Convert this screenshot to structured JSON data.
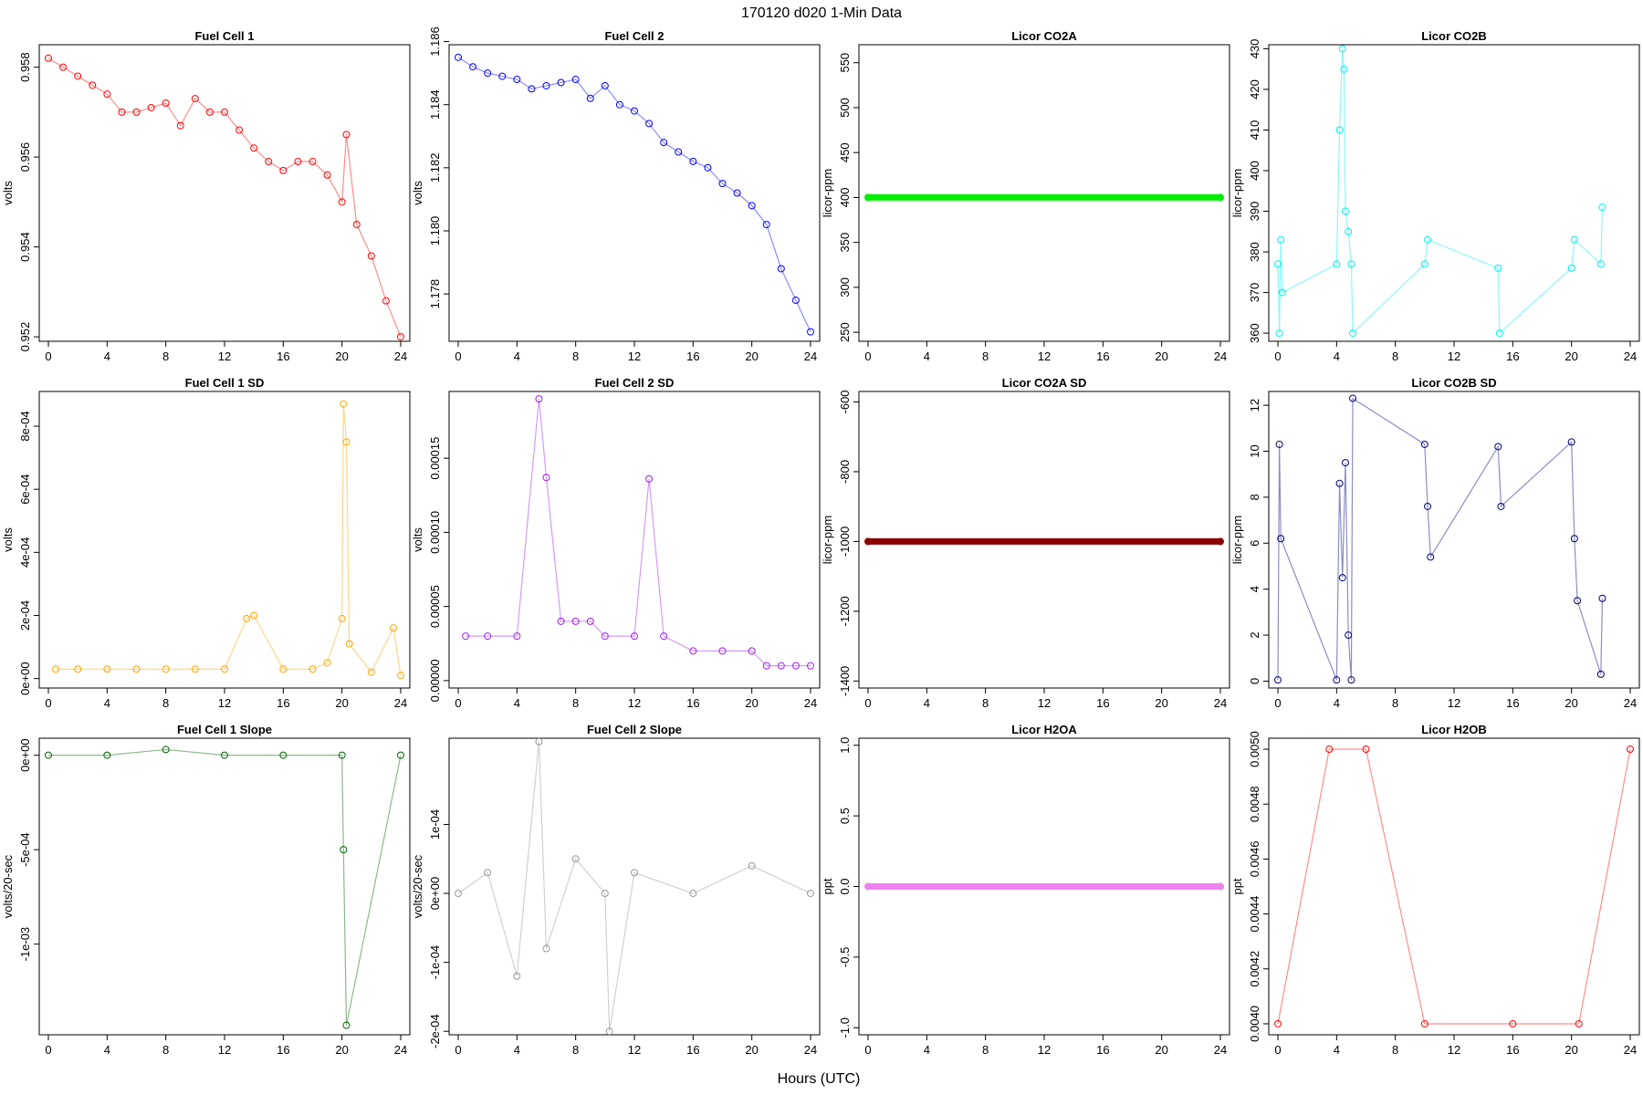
{
  "figure": {
    "suptitle": "170120    d020    1-Min Data",
    "xlabel": "Hours (UTC)"
  },
  "chart_data": [
    {
      "id": "fc1",
      "type": "scatter",
      "title": "Fuel Cell 1",
      "ylabel": "volts",
      "color": "#ff0000",
      "xlim": [
        0,
        24
      ],
      "ylim": [
        0.9519,
        0.9585
      ],
      "yticks": [
        0.952,
        0.954,
        0.956,
        0.958
      ],
      "ytick_labels": [
        "0.952",
        "0.954",
        "0.956",
        "0.958"
      ],
      "x": [
        0,
        1,
        2,
        3,
        4,
        5,
        6,
        7,
        8,
        9,
        10,
        11,
        12,
        13,
        14,
        15,
        16,
        17,
        18,
        19,
        20,
        20.3,
        21,
        22,
        23,
        24
      ],
      "y": [
        0.9582,
        0.958,
        0.9578,
        0.9576,
        0.9574,
        0.957,
        0.957,
        0.9571,
        0.9572,
        0.9567,
        0.9573,
        0.957,
        0.957,
        0.9566,
        0.9562,
        0.9559,
        0.9557,
        0.9559,
        0.9559,
        0.9556,
        0.955,
        0.9565,
        0.9545,
        0.9538,
        0.9528,
        0.952
      ]
    },
    {
      "id": "fc2",
      "type": "scatter",
      "title": "Fuel Cell 2",
      "ylabel": "volts",
      "color": "#0000ff",
      "xlim": [
        0,
        24
      ],
      "ylim": [
        1.1765,
        1.1859
      ],
      "yticks": [
        1.178,
        1.18,
        1.182,
        1.184,
        1.186
      ],
      "ytick_labels": [
        "1.178",
        "1.180",
        "1.182",
        "1.184",
        "1.186"
      ],
      "x": [
        0,
        1,
        2,
        3,
        4,
        5,
        6,
        7,
        8,
        9,
        10,
        11,
        12,
        13,
        14,
        15,
        16,
        17,
        18,
        19,
        20,
        21,
        22,
        23,
        24
      ],
      "y": [
        1.1855,
        1.1852,
        1.185,
        1.1849,
        1.1848,
        1.1845,
        1.1846,
        1.1847,
        1.1848,
        1.1842,
        1.1846,
        1.184,
        1.1838,
        1.1834,
        1.1828,
        1.1825,
        1.1822,
        1.182,
        1.1815,
        1.1812,
        1.1808,
        1.1802,
        1.1788,
        1.1778,
        1.1768
      ]
    },
    {
      "id": "co2a",
      "type": "scatter",
      "title": "Licor CO2A",
      "ylabel": "licor-ppm",
      "color": "#00ee00",
      "xlim": [
        0,
        24
      ],
      "ylim": [
        240,
        570
      ],
      "yticks": [
        250,
        300,
        350,
        400,
        450,
        500,
        550
      ],
      "ytick_labels": [
        "250",
        "300",
        "350",
        "400",
        "450",
        "500",
        "550"
      ],
      "x": [
        0,
        24
      ],
      "y": [
        400,
        400
      ]
    },
    {
      "id": "co2b",
      "type": "scatter",
      "title": "Licor CO2B",
      "ylabel": "licor-ppm",
      "color": "#00eeee",
      "xlim": [
        0,
        24
      ],
      "ylim": [
        358,
        431
      ],
      "yticks": [
        360,
        370,
        380,
        390,
        400,
        410,
        420,
        430
      ],
      "ytick_labels": [
        "360",
        "370",
        "380",
        "390",
        "400",
        "410",
        "420",
        "430"
      ],
      "x": [
        0,
        0.1,
        0.2,
        0.3,
        4,
        4.2,
        4.4,
        4.5,
        4.6,
        4.8,
        5,
        5.1,
        10,
        10.2,
        15,
        15.1,
        20,
        20.2,
        22,
        22.1
      ],
      "y": [
        377,
        360,
        383,
        370,
        377,
        410,
        430,
        425,
        390,
        385,
        377,
        360,
        377,
        383,
        376,
        360,
        376,
        383,
        377,
        391
      ]
    },
    {
      "id": "fc1sd",
      "type": "scatter",
      "title": "Fuel Cell 1 SD",
      "ylabel": "volts",
      "color": "#ffa500",
      "xlim": [
        0,
        24
      ],
      "ylim": [
        -3e-05,
        0.00091
      ],
      "yticks": [
        0,
        0.0002,
        0.0004,
        0.0006,
        0.0008
      ],
      "ytick_labels": [
        "0e+00",
        "2e-04",
        "4e-04",
        "6e-04",
        "8e-04"
      ],
      "x": [
        0.5,
        2,
        4,
        6,
        8,
        10,
        12,
        13.5,
        14,
        16,
        18,
        19,
        20,
        20.1,
        20.3,
        20.5,
        22,
        23.5,
        24
      ],
      "y": [
        3e-05,
        3e-05,
        3e-05,
        3e-05,
        3e-05,
        3e-05,
        3e-05,
        0.00019,
        0.0002,
        3e-05,
        3e-05,
        5e-05,
        0.00019,
        0.00087,
        0.00075,
        0.00011,
        2e-05,
        0.00016,
        1e-05
      ]
    },
    {
      "id": "fc2sd",
      "type": "scatter",
      "title": "Fuel Cell 2 SD",
      "ylabel": "volts",
      "color": "#a020f0",
      "xlim": [
        0,
        24
      ],
      "ylim": [
        -5e-06,
        0.000195
      ],
      "yticks": [
        0,
        5e-05,
        0.0001,
        0.00015
      ],
      "ytick_labels": [
        "0.00000",
        "0.00005",
        "0.00010",
        "0.00015"
      ],
      "x": [
        0.5,
        2,
        4,
        5.5,
        6,
        7,
        8,
        9,
        10,
        12,
        13,
        14,
        16,
        18,
        20,
        21,
        22,
        23,
        24
      ],
      "y": [
        3e-05,
        3e-05,
        3e-05,
        0.00019,
        0.000137,
        4e-05,
        4e-05,
        4e-05,
        3e-05,
        3e-05,
        0.000136,
        3e-05,
        2e-05,
        2e-05,
        2e-05,
        1e-05,
        1e-05,
        1e-05,
        1e-05
      ]
    },
    {
      "id": "co2asd",
      "type": "scatter",
      "title": "Licor CO2A SD",
      "ylabel": "licor-ppm",
      "color": "#8b0000",
      "xlim": [
        0,
        24
      ],
      "ylim": [
        -1420,
        -570
      ],
      "yticks": [
        -1400,
        -1200,
        -1000,
        -800,
        -600
      ],
      "ytick_labels": [
        "-1400",
        "-1200",
        "-1000",
        "-800",
        "-600"
      ],
      "x": [
        0,
        24
      ],
      "y": [
        -1000,
        -1000
      ]
    },
    {
      "id": "co2bsd",
      "type": "scatter",
      "title": "Licor CO2B SD",
      "ylabel": "licor-ppm",
      "color": "#000080",
      "xlim": [
        0,
        24
      ],
      "ylim": [
        -0.3,
        12.6
      ],
      "yticks": [
        0,
        2,
        4,
        6,
        8,
        10,
        12
      ],
      "ytick_labels": [
        "0",
        "2",
        "4",
        "6",
        "8",
        "10",
        "12"
      ],
      "x": [
        0,
        0.1,
        0.2,
        4,
        4.2,
        4.4,
        4.6,
        4.8,
        5,
        5.1,
        10,
        10.2,
        10.4,
        15,
        15.2,
        20,
        20.2,
        20.4,
        22,
        22.1
      ],
      "y": [
        0.05,
        10.3,
        6.2,
        0.05,
        8.6,
        4.5,
        9.5,
        2,
        0.05,
        12.3,
        10.3,
        7.6,
        5.4,
        10.2,
        7.6,
        10.4,
        6.2,
        3.5,
        0.3,
        3.6
      ]
    },
    {
      "id": "fc1slope",
      "type": "scatter",
      "title": "Fuel Cell 1 Slope",
      "ylabel": "volts/20-sec",
      "color": "#006400",
      "xlim": [
        0,
        24
      ],
      "ylim": [
        -0.00148,
        9e-05
      ],
      "yticks": [
        -0.001,
        -0.0005,
        0
      ],
      "ytick_labels": [
        "-1e-03",
        "-5e-04",
        "0e+00"
      ],
      "x": [
        0,
        4,
        8,
        12,
        16,
        20,
        20.1,
        20.3,
        24
      ],
      "y": [
        0,
        0,
        3e-05,
        0,
        0,
        0,
        -0.0005,
        -0.00143,
        0
      ]
    },
    {
      "id": "fc2slope",
      "type": "scatter",
      "title": "Fuel Cell 2 Slope",
      "ylabel": "volts/20-sec",
      "color": "#999999",
      "xlim": [
        0,
        24
      ],
      "ylim": [
        -0.000205,
        0.000225
      ],
      "yticks": [
        -0.0002,
        -0.0001,
        0,
        0.0001
      ],
      "ytick_labels": [
        "-2e-04",
        "-1e-04",
        "0e+00",
        "1e-04"
      ],
      "x": [
        0,
        2,
        4,
        5.5,
        6,
        8,
        10,
        10.3,
        12,
        16,
        20,
        24
      ],
      "y": [
        0,
        3e-05,
        -0.00012,
        0.00022,
        -8e-05,
        5e-05,
        0,
        -0.0002,
        3e-05,
        0,
        4e-05,
        0
      ]
    },
    {
      "id": "h2oa",
      "type": "scatter",
      "title": "Licor H2OA",
      "ylabel": "ppt",
      "color": "#ee82ee",
      "xlim": [
        0,
        24
      ],
      "ylim": [
        -1.05,
        1.05
      ],
      "yticks": [
        -1,
        -0.5,
        0,
        0.5,
        1
      ],
      "ytick_labels": [
        "-1.0",
        "-0.5",
        "0.0",
        "0.5",
        "1.0"
      ],
      "x": [
        0,
        24
      ],
      "y": [
        0,
        0
      ]
    },
    {
      "id": "h2ob",
      "type": "scatter",
      "title": "Licor H2OB",
      "ylabel": "ppt",
      "color": "#ff0000",
      "xlim": [
        0,
        24
      ],
      "ylim": [
        0.00396,
        0.00504
      ],
      "yticks": [
        0.004,
        0.0042,
        0.0044,
        0.0046,
        0.0048,
        0.005
      ],
      "ytick_labels": [
        "0.0040",
        "0.0042",
        "0.0044",
        "0.0046",
        "0.0048",
        "0.0050"
      ],
      "x": [
        0,
        3.5,
        6,
        10,
        16,
        20.5,
        24
      ],
      "y": [
        0.004,
        0.005,
        0.005,
        0.004,
        0.004,
        0.004,
        0.005
      ]
    }
  ]
}
